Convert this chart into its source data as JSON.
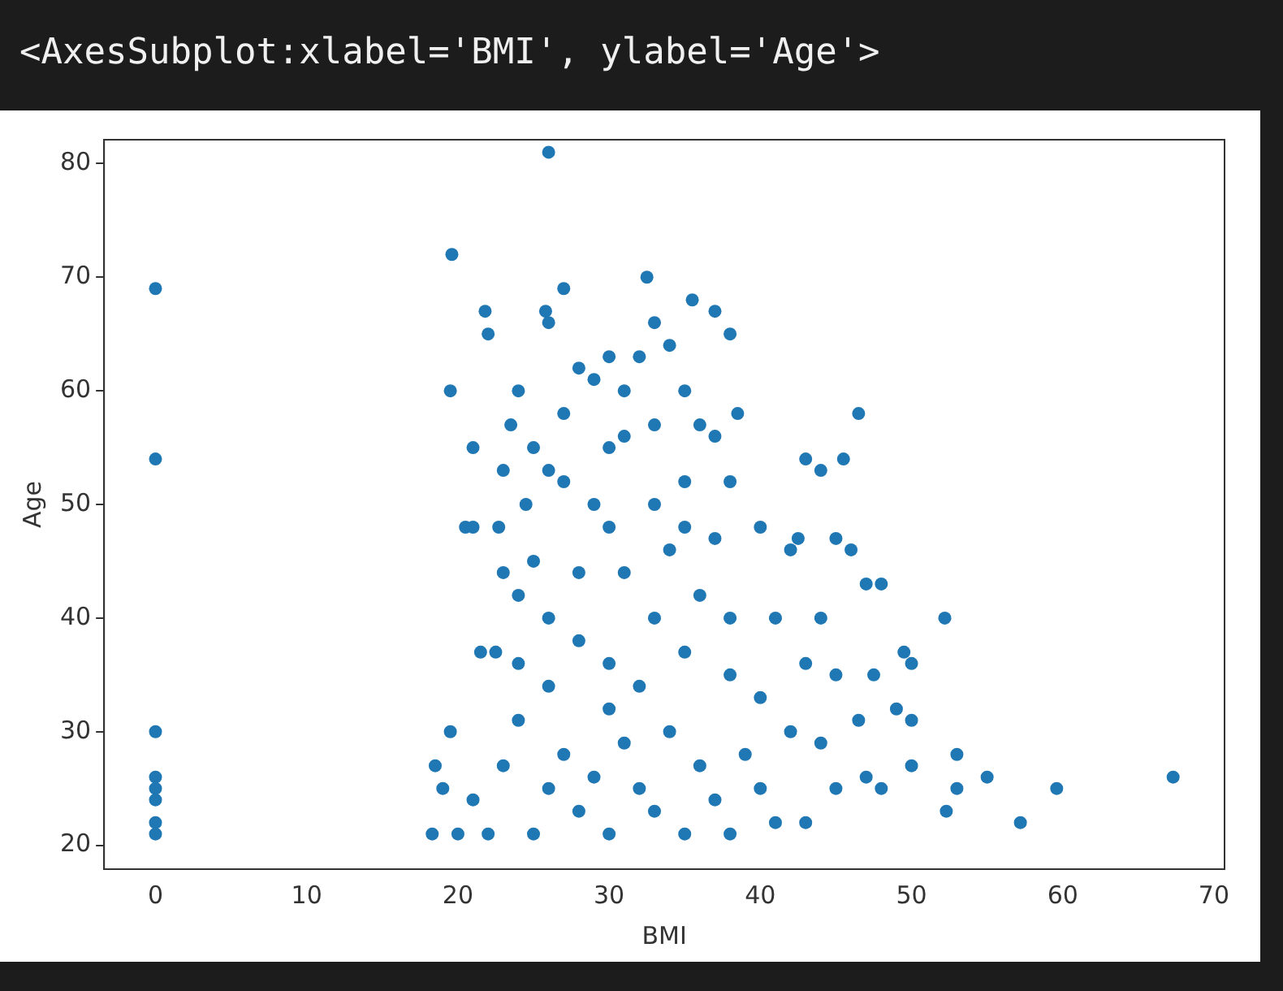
{
  "chart_data": {
    "type": "scatter",
    "annotations": [
      "<AxesSubplot:xlabel='BMI', ylabel='Age'>"
    ],
    "xlabel": "BMI",
    "ylabel": "Age",
    "xlim": [
      -3.4,
      70.7
    ],
    "ylim": [
      17.9,
      82.1
    ],
    "xticks": [
      0,
      10,
      20,
      30,
      40,
      50,
      60,
      70
    ],
    "yticks": [
      20,
      30,
      40,
      50,
      60,
      70,
      80
    ],
    "grid": false,
    "legend": false,
    "marker": "circle",
    "series": [
      {
        "color": "#1f77b4",
        "x": [
          0,
          0,
          0,
          0,
          0,
          0,
          0,
          0,
          26,
          19.6,
          19.5,
          32.5,
          27,
          21.8,
          22,
          25.8,
          26,
          28,
          37,
          38,
          35.5,
          33,
          32,
          30,
          29,
          31,
          34,
          24,
          23.5,
          21,
          25,
          26,
          23,
          20.5,
          22.7,
          24.5,
          27,
          29,
          30,
          25,
          24,
          21.5,
          22.5,
          19.5,
          18.5,
          19,
          18.3,
          20,
          38.5,
          36,
          37,
          35,
          38,
          40,
          42,
          43,
          44,
          45.5,
          46.5,
          42.5,
          45,
          46,
          47,
          48,
          49.5,
          50,
          47.5,
          52.2,
          44,
          41,
          43,
          45,
          46.5,
          49,
          47,
          48,
          50,
          50,
          53,
          53,
          55,
          52.3,
          57.2,
          59.6,
          67.3,
          44,
          45,
          42,
          40,
          43,
          38,
          35,
          30,
          25,
          22,
          28,
          32,
          36,
          34,
          30,
          26,
          28,
          33,
          36,
          31,
          34,
          37,
          33,
          35,
          30,
          38,
          40,
          24,
          23,
          21,
          27,
          29,
          31,
          33,
          37,
          39,
          41,
          26,
          24,
          32,
          35,
          28,
          38,
          31,
          33,
          30,
          35,
          27,
          23,
          26,
          21
        ],
        "values": [
          69,
          54,
          30,
          26,
          25,
          24,
          22,
          21,
          81,
          72,
          60,
          70,
          69,
          67,
          65,
          67,
          66,
          62,
          67,
          65,
          68,
          66,
          63,
          63,
          61,
          60,
          64,
          60,
          57,
          55,
          55,
          53,
          53,
          48,
          48,
          50,
          52,
          50,
          48,
          45,
          42,
          37,
          37,
          30,
          27,
          25,
          21,
          21,
          58,
          57,
          56,
          52,
          52,
          48,
          46,
          54,
          53,
          54,
          58,
          47,
          47,
          46,
          43,
          43,
          37,
          36,
          35,
          40,
          40,
          40,
          36,
          35,
          31,
          32,
          26,
          25,
          27,
          31,
          28,
          25,
          26,
          23,
          22,
          25,
          26,
          29,
          25,
          30,
          25,
          22,
          21,
          21,
          21,
          21,
          21,
          23,
          25,
          27,
          30,
          32,
          34,
          38,
          40,
          42,
          44,
          46,
          47,
          50,
          48,
          36,
          35,
          33,
          31,
          27,
          24,
          28,
          26,
          29,
          23,
          24,
          28,
          22,
          25,
          36,
          34,
          37,
          44,
          40,
          56,
          57,
          55,
          60,
          58,
          44,
          40,
          48
        ]
      }
    ]
  }
}
